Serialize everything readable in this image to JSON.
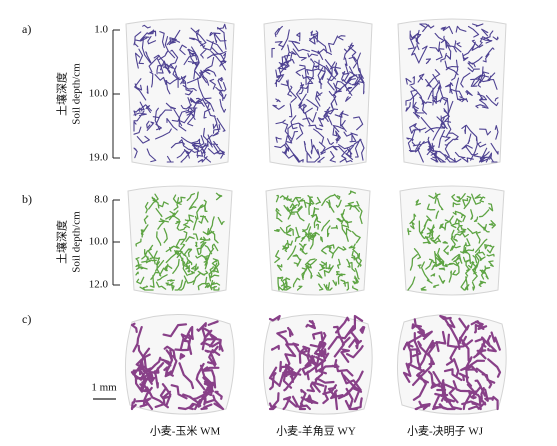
{
  "panels": [
    {
      "label": "a)",
      "axis": {
        "title_cn": "土壤深度",
        "title_en": "Soil depth/cm",
        "ticks": [
          "1.0",
          "10.0",
          "19.0"
        ]
      }
    },
    {
      "label": "b)",
      "axis": {
        "title_cn": "土壤深度",
        "title_en": "Soil depth/cm",
        "ticks": [
          "8.0",
          "10.0",
          "12.0"
        ]
      }
    },
    {
      "label": "c)",
      "scale_bar": "1 mm"
    }
  ],
  "columns": [
    "小麦-玉米 WM",
    "小麦-羊角豆 WY",
    "小麦-决明子 WJ"
  ]
}
